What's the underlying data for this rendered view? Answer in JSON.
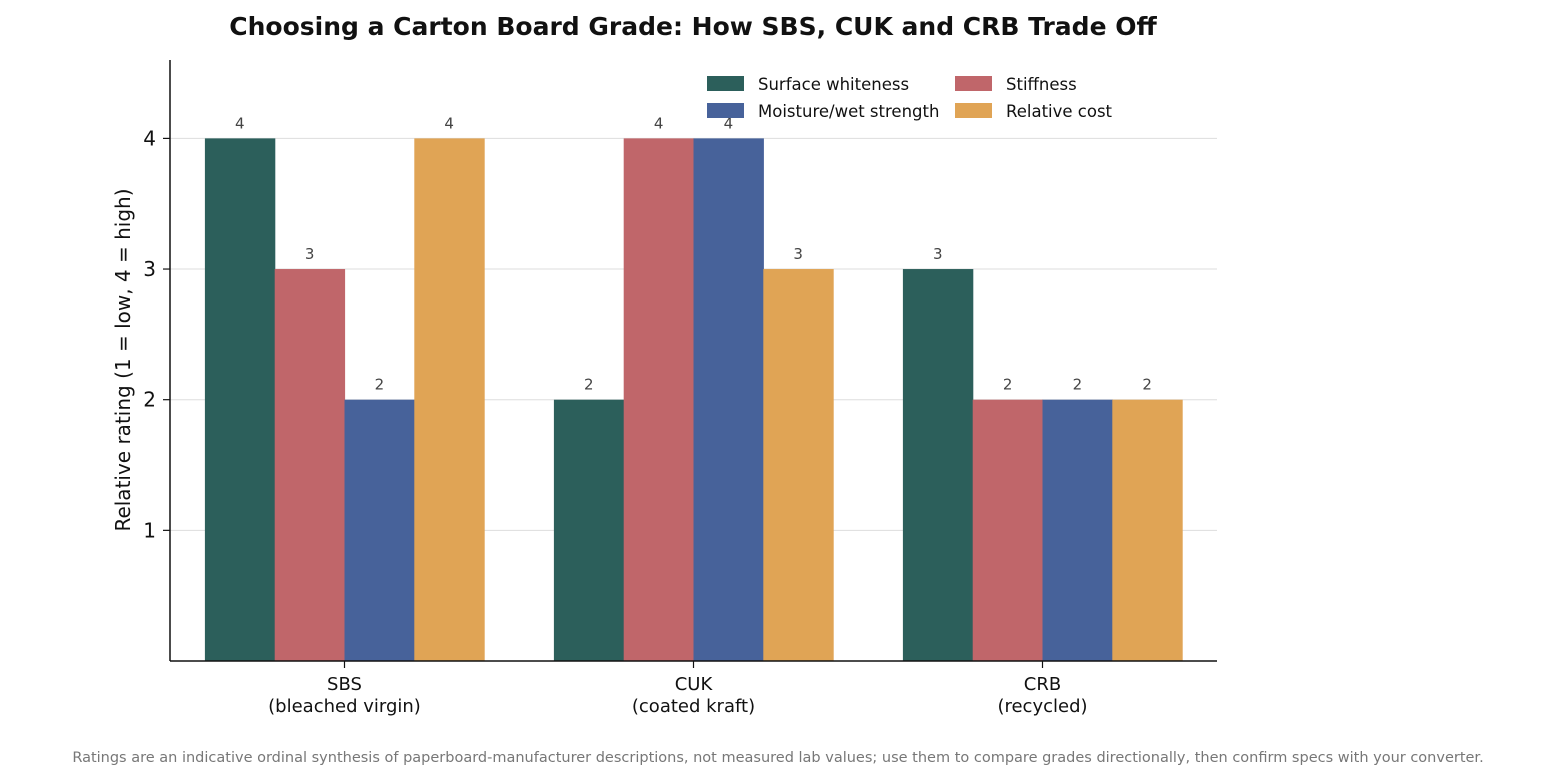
{
  "chart_data": {
    "type": "bar",
    "title": "Choosing a Carton Board Grade: How SBS, CUK and CRB Trade Off",
    "ylabel": "Relative rating (1 = low, 4 = high)",
    "xlabel": "",
    "ylim": [
      0,
      4.6
    ],
    "yticks": [
      1,
      2,
      3,
      4
    ],
    "categories": [
      [
        "SBS",
        "(bleached virgin)"
      ],
      [
        "CUK",
        "(coated kraft)"
      ],
      [
        "CRB",
        "(recycled)"
      ]
    ],
    "series": [
      {
        "name": "Surface whiteness",
        "color": "#2c5f5b",
        "values": [
          4,
          2,
          3
        ]
      },
      {
        "name": "Stiffness",
        "color": "#c0666a",
        "values": [
          3,
          4,
          2
        ]
      },
      {
        "name": "Moisture/wet strength",
        "color": "#47629a",
        "values": [
          2,
          4,
          2
        ]
      },
      {
        "name": "Relative cost",
        "color": "#e0a455",
        "values": [
          4,
          3,
          2
        ]
      }
    ],
    "grid": "horizontal",
    "legend_position": "top-right",
    "data_labels": true,
    "footnote": "Ratings are an indicative ordinal synthesis of paperboard-manufacturer descriptions, not measured lab values; use them to compare grades directionally, then confirm specs with your converter."
  }
}
